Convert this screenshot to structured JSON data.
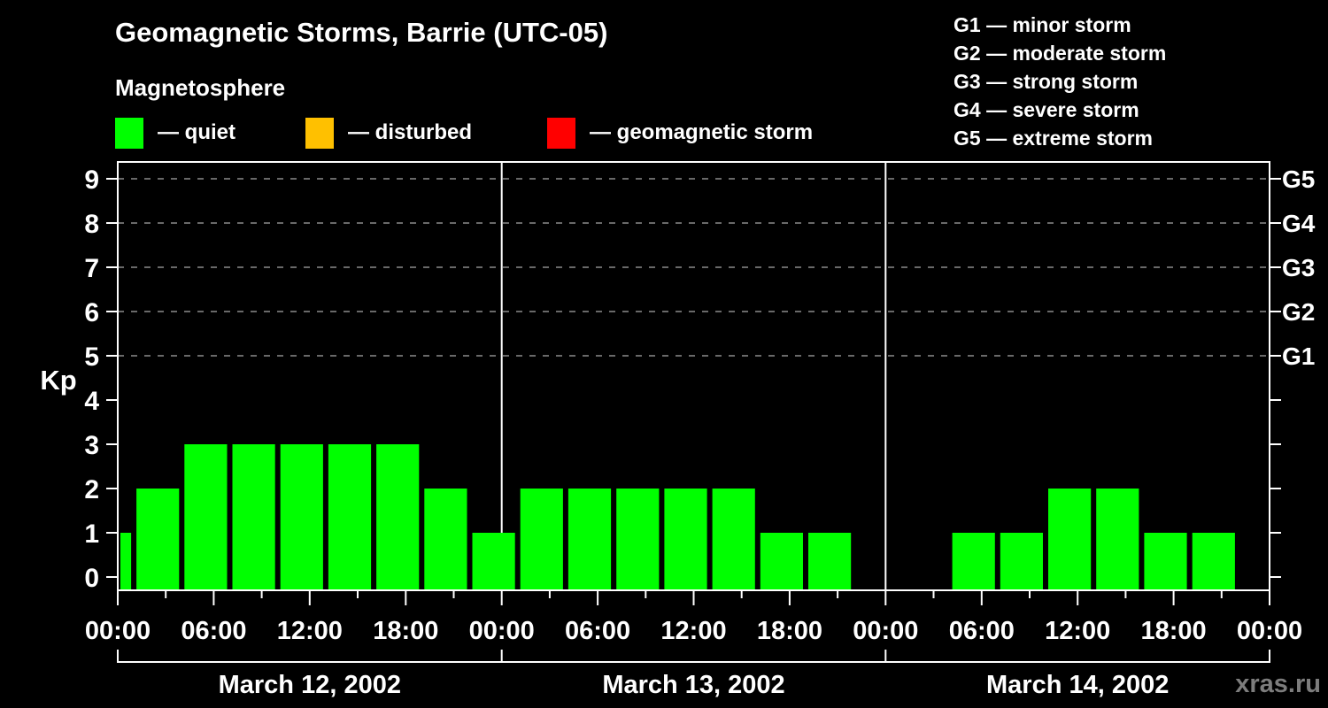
{
  "header": {
    "title": "Geomagnetic Storms, Barrie (UTC-05)",
    "subtitle": "Magnetosphere",
    "kp_legend": [
      {
        "color": "#00ff00",
        "label": "— quiet"
      },
      {
        "color": "#ffc000",
        "label": "— disturbed"
      },
      {
        "color": "#ff0000",
        "label": "— geomagnetic storm"
      }
    ],
    "g_legend": [
      "G1 — minor storm",
      "G2 — moderate storm",
      "G3 — strong storm",
      "G4 — severe storm",
      "G5 — extreme storm"
    ]
  },
  "watermark": "xras.ru",
  "chart_data": {
    "type": "bar",
    "title": "Geomagnetic Storms, Barrie (UTC-05)",
    "subtitle": "Magnetosphere",
    "ylabel": "Kp",
    "xlabel": "",
    "ylim": [
      0,
      9
    ],
    "yticks": [
      0,
      1,
      2,
      3,
      4,
      5,
      6,
      7,
      8,
      9
    ],
    "grid_levels": [
      5,
      6,
      7,
      8,
      9
    ],
    "grid_on": true,
    "bar_color": "#00ff00",
    "right_axis_labels": [
      {
        "label": "G1",
        "kp": 5
      },
      {
        "label": "G2",
        "kp": 6
      },
      {
        "label": "G3",
        "kp": 7
      },
      {
        "label": "G4",
        "kp": 8
      },
      {
        "label": "G5",
        "kp": 9
      }
    ],
    "x_axis": {
      "major_hours": [
        0,
        6,
        12,
        18
      ],
      "major_labels": [
        "00:00",
        "06:00",
        "12:00",
        "18:00"
      ],
      "minor_hours": [
        3,
        9,
        15,
        21
      ],
      "final_label": "00:00",
      "hours_per_day": 24
    },
    "days": [
      {
        "date": "March 12, 2002",
        "bars": [
          {
            "start": 0,
            "end": 1,
            "kp": 1
          },
          {
            "start": 1,
            "end": 4,
            "kp": 2
          },
          {
            "start": 4,
            "end": 7,
            "kp": 3
          },
          {
            "start": 7,
            "end": 10,
            "kp": 3
          },
          {
            "start": 10,
            "end": 13,
            "kp": 3
          },
          {
            "start": 13,
            "end": 16,
            "kp": 3
          },
          {
            "start": 16,
            "end": 19,
            "kp": 3
          },
          {
            "start": 19,
            "end": 22,
            "kp": 2
          },
          {
            "start": 22,
            "end": 25,
            "kp": 1
          }
        ]
      },
      {
        "date": "March 13, 2002",
        "bars": [
          {
            "start": 1,
            "end": 4,
            "kp": 2
          },
          {
            "start": 4,
            "end": 7,
            "kp": 2
          },
          {
            "start": 7,
            "end": 10,
            "kp": 2
          },
          {
            "start": 10,
            "end": 13,
            "kp": 2
          },
          {
            "start": 13,
            "end": 16,
            "kp": 2
          },
          {
            "start": 16,
            "end": 19,
            "kp": 1
          },
          {
            "start": 19,
            "end": 22,
            "kp": 1
          },
          {
            "start": 22,
            "end": 25,
            "kp": 0
          }
        ]
      },
      {
        "date": "March 14, 2002",
        "bars": [
          {
            "start": 1,
            "end": 4,
            "kp": 0
          },
          {
            "start": 4,
            "end": 7,
            "kp": 1
          },
          {
            "start": 7,
            "end": 10,
            "kp": 1
          },
          {
            "start": 10,
            "end": 13,
            "kp": 2
          },
          {
            "start": 13,
            "end": 16,
            "kp": 2
          },
          {
            "start": 16,
            "end": 19,
            "kp": 1
          },
          {
            "start": 19,
            "end": 22,
            "kp": 1
          },
          {
            "start": 22,
            "end": 24,
            "kp": 0
          }
        ]
      }
    ]
  }
}
